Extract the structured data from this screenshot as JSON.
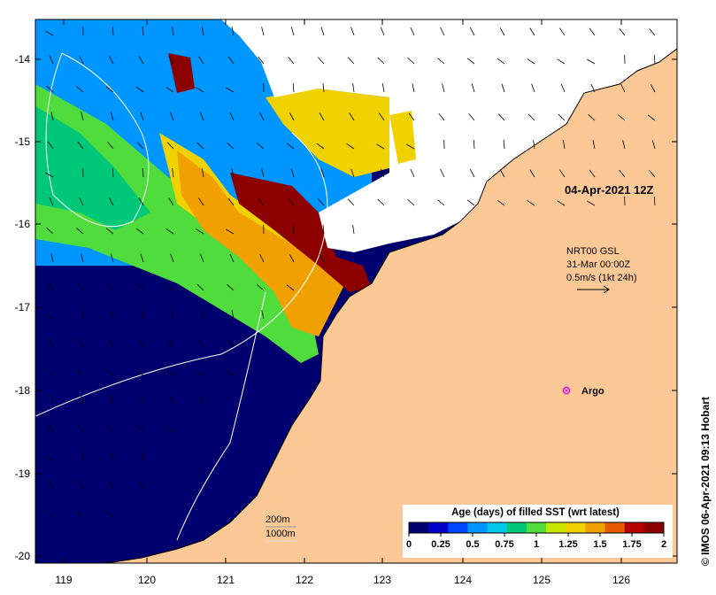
{
  "map": {
    "date_label": "04-Apr-2021 12Z",
    "current_source": "NRT00 GSL",
    "current_time": "31-Mar 00:00Z",
    "current_scale": "0.5m/s (1kt 24h)",
    "argo_label": "Argo",
    "contour_legend": [
      "200m",
      "1000m"
    ],
    "lat_ticks": [
      "-14",
      "-15",
      "-16",
      "-17",
      "-18",
      "-19",
      "-20"
    ],
    "lon_ticks": [
      "119",
      "120",
      "121",
      "122",
      "123",
      "124",
      "125",
      "126"
    ],
    "credit": "© IMOS 06-Apr-2021 09:13 Hobart"
  },
  "colorbar": {
    "title": "Age (days) of filled SST (wrt latest)",
    "ticks": [
      "0",
      "0.25",
      "0.5",
      "0.75",
      "1",
      "1.25",
      "1.5",
      "1.75",
      "2"
    ],
    "colors": [
      "#00006e",
      "#0000c8",
      "#0046ff",
      "#0096ff",
      "#00c8e6",
      "#00c878",
      "#50dc3c",
      "#c8e600",
      "#f0d200",
      "#f0a000",
      "#e65a00",
      "#b40000",
      "#8c0000"
    ]
  },
  "colors": {
    "land": "#fcc896",
    "no_data": "#ffffff",
    "argo": "#e600e6"
  }
}
